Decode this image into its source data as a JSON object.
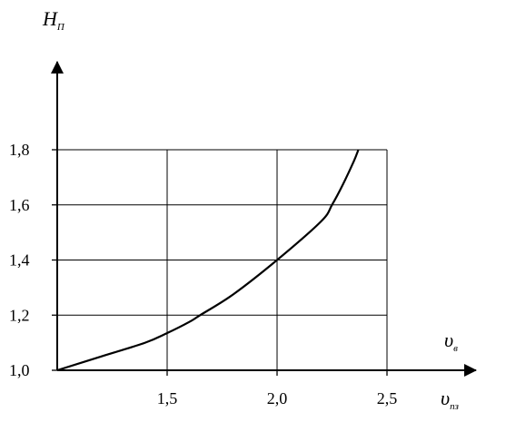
{
  "chart_data": {
    "type": "line",
    "y_axis_label": {
      "main": "H",
      "sub": "П"
    },
    "x_axis_label_upper": {
      "main": "υ",
      "sub": "в"
    },
    "x_axis_label_lower": {
      "main": "υ",
      "sub": "пз"
    },
    "x_ticks": [
      "1,5",
      "2,0",
      "2,5"
    ],
    "x_tick_values": [
      1.5,
      2.0,
      2.5
    ],
    "y_ticks": [
      "1,0",
      "1,2",
      "1,4",
      "1,6",
      "1,8"
    ],
    "y_tick_values": [
      1.0,
      1.2,
      1.4,
      1.6,
      1.8
    ],
    "xlim": [
      1.0,
      2.5
    ],
    "ylim": [
      1.0,
      1.8
    ],
    "grid": true,
    "series": [
      {
        "x": [
          1.0,
          1.2,
          1.4,
          1.5,
          1.6,
          1.65,
          1.8,
          2.0,
          2.2,
          2.25,
          2.3,
          2.35,
          2.37
        ],
        "y": [
          1.0,
          1.05,
          1.1,
          1.135,
          1.175,
          1.2,
          1.275,
          1.4,
          1.54,
          1.6,
          1.675,
          1.76,
          1.8
        ]
      }
    ]
  }
}
